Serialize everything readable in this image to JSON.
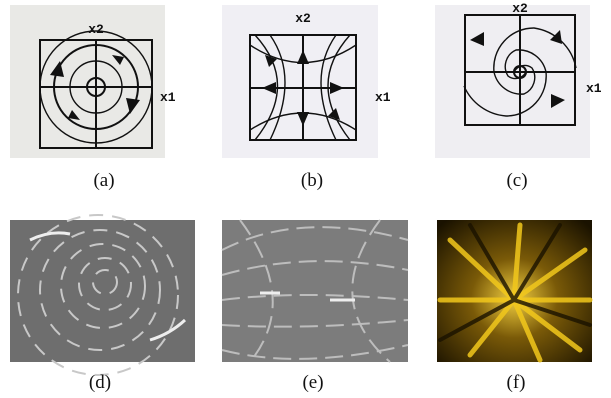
{
  "panels": [
    {
      "label": "(a)",
      "axis_labels": [
        "x2",
        "x1"
      ]
    },
    {
      "label": "(b)",
      "axis_labels": [
        "x2",
        "x1"
      ]
    },
    {
      "label": "(c)",
      "axis_labels": [
        "x2",
        "x1"
      ]
    },
    {
      "label": "(d)"
    },
    {
      "label": "(e)"
    },
    {
      "label": "(f)"
    }
  ]
}
